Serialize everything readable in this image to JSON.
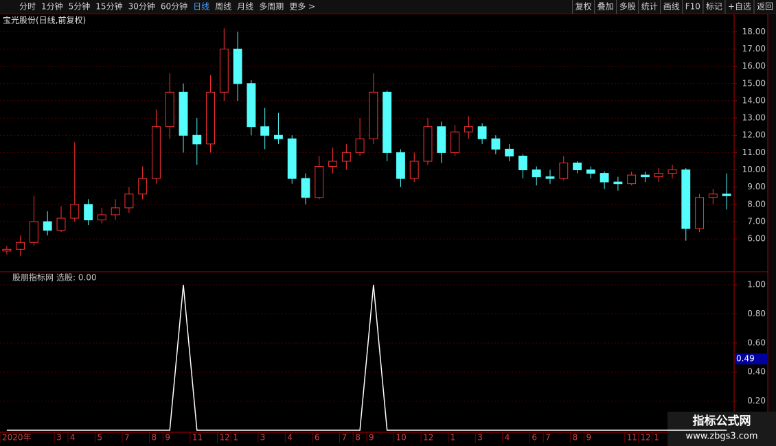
{
  "toolbar": {
    "left": [
      "分时",
      "1分钟",
      "5分钟",
      "15分钟",
      "30分钟",
      "60分钟",
      "日线",
      "周线",
      "月线",
      "多周期",
      "更多 >"
    ],
    "active": "日线",
    "right": [
      "复权",
      "叠加",
      "多股",
      "统计",
      "画线",
      "F10",
      "标记",
      "+自选",
      "返回"
    ]
  },
  "watermark": {
    "title": "指标公式网",
    "url": "www.zbgs3.com"
  },
  "chart_data": [
    {
      "type": "candlestick",
      "title": "宝光股份(日线,前复权)",
      "up_color": "#ff3232",
      "down_color": "#54fcfc",
      "grid": true,
      "categories": [
        "2020年",
        null,
        null,
        null,
        "3",
        "4",
        null,
        "5",
        null,
        "7",
        null,
        "8",
        "9",
        null,
        "11",
        null,
        "12",
        "1",
        null,
        "3",
        null,
        "4",
        null,
        "6",
        null,
        "7",
        "8",
        "9",
        null,
        "10",
        null,
        "12",
        null,
        "1",
        null,
        "3",
        null,
        "4",
        null,
        "6",
        "7",
        null,
        "8",
        "9",
        null,
        null,
        "11",
        "12",
        "1",
        null,
        null,
        null,
        null,
        null
      ],
      "open": [
        5.3,
        5.4,
        5.8,
        7.0,
        6.5,
        7.2,
        8.0,
        7.1,
        7.4,
        7.8,
        8.6,
        9.5,
        12.5,
        14.5,
        12.0,
        11.5,
        14.5,
        17.0,
        15.0,
        12.5,
        12.0,
        11.8,
        9.5,
        8.4,
        10.2,
        10.5,
        11.0,
        11.8,
        14.5,
        11.0,
        9.5,
        10.5,
        12.5,
        11.0,
        12.2,
        12.5,
        11.8,
        11.2,
        10.8,
        10.0,
        9.6,
        9.5,
        10.4,
        10.0,
        9.8,
        9.3,
        9.2,
        9.7,
        9.6,
        9.8,
        10.0,
        6.6,
        8.4,
        8.6
      ],
      "high": [
        5.6,
        6.2,
        8.5,
        7.6,
        7.9,
        11.6,
        8.3,
        7.8,
        8.3,
        9.0,
        10.2,
        13.5,
        15.6,
        15.0,
        13.0,
        15.5,
        18.2,
        18.0,
        15.2,
        13.6,
        13.3,
        12.0,
        9.8,
        10.8,
        11.3,
        11.5,
        13.0,
        15.6,
        14.6,
        11.2,
        11.0,
        13.0,
        12.8,
        12.6,
        13.1,
        12.7,
        12.0,
        11.5,
        10.9,
        10.2,
        10.0,
        10.8,
        10.5,
        10.2,
        9.9,
        9.6,
        9.9,
        9.9,
        10.1,
        10.3,
        10.1,
        8.6,
        8.9,
        9.8
      ],
      "low": [
        5.1,
        5.0,
        5.6,
        6.2,
        6.4,
        7.0,
        6.8,
        6.9,
        7.1,
        7.5,
        8.3,
        9.2,
        11.8,
        11.0,
        10.3,
        11.0,
        14.0,
        14.0,
        12.0,
        11.2,
        11.5,
        9.2,
        8.0,
        8.3,
        9.8,
        10.0,
        10.8,
        11.5,
        10.5,
        9.0,
        9.3,
        10.3,
        10.4,
        10.8,
        11.8,
        11.5,
        10.9,
        10.5,
        9.5,
        9.1,
        9.2,
        9.4,
        9.8,
        9.5,
        8.9,
        8.8,
        9.1,
        9.3,
        9.3,
        9.5,
        5.9,
        6.4,
        8.0,
        7.7
      ],
      "close": [
        5.4,
        5.8,
        7.0,
        6.5,
        7.2,
        8.0,
        7.1,
        7.4,
        7.8,
        8.6,
        9.5,
        12.5,
        14.5,
        12.0,
        11.5,
        14.5,
        17.0,
        15.0,
        12.5,
        12.0,
        11.8,
        9.5,
        8.4,
        10.2,
        10.5,
        11.0,
        11.8,
        14.5,
        11.0,
        9.5,
        10.5,
        12.5,
        11.0,
        12.2,
        12.5,
        11.8,
        11.2,
        10.8,
        10.0,
        9.6,
        9.5,
        10.4,
        10.0,
        9.8,
        9.3,
        9.2,
        9.7,
        9.6,
        9.8,
        10.0,
        6.6,
        8.4,
        8.6,
        8.5
      ],
      "ylim": [
        4.1,
        18.25
      ],
      "yticks": [
        {
          "value": 6,
          "label": "6.00"
        },
        {
          "value": 7,
          "label": "7.00"
        },
        {
          "value": 8,
          "label": "8.00"
        },
        {
          "value": 9,
          "label": "9.00"
        },
        {
          "value": 10,
          "label": "10.00"
        },
        {
          "value": 11,
          "label": "11.00"
        },
        {
          "value": 12,
          "label": "12.00"
        },
        {
          "value": 13,
          "label": "13.00"
        },
        {
          "value": 14,
          "label": "14.00"
        },
        {
          "value": 15,
          "label": "15.00"
        },
        {
          "value": 16,
          "label": "16.00"
        },
        {
          "value": 17,
          "label": "17.00"
        },
        {
          "value": 18,
          "label": "18.00"
        }
      ]
    },
    {
      "type": "line",
      "title": "股朋指标网",
      "series_label": "选股: 0.00",
      "color": "#ffffff",
      "grid": true,
      "values": [
        0,
        0,
        0,
        0,
        0,
        0,
        0,
        0,
        0,
        0,
        0,
        0,
        0,
        1,
        0,
        0,
        0,
        0,
        0,
        0,
        0,
        0,
        0,
        0,
        0,
        0,
        0,
        1,
        0,
        0,
        0,
        0,
        0,
        0,
        0,
        0,
        0,
        0,
        0,
        0,
        0,
        0,
        0,
        0,
        0,
        0,
        0,
        0,
        0,
        0,
        0,
        0,
        0,
        0
      ],
      "crosshair_label": {
        "value": 0.49,
        "label": "0.49"
      },
      "ylim": [
        0,
        1.09
      ],
      "yticks": [
        {
          "value": 0.2,
          "label": "0.20"
        },
        {
          "value": 0.4,
          "label": "0.40"
        },
        {
          "value": 0.6,
          "label": "0.60"
        },
        {
          "value": 0.8,
          "label": "0.80"
        },
        {
          "value": 1,
          "label": "1.00"
        }
      ]
    }
  ]
}
